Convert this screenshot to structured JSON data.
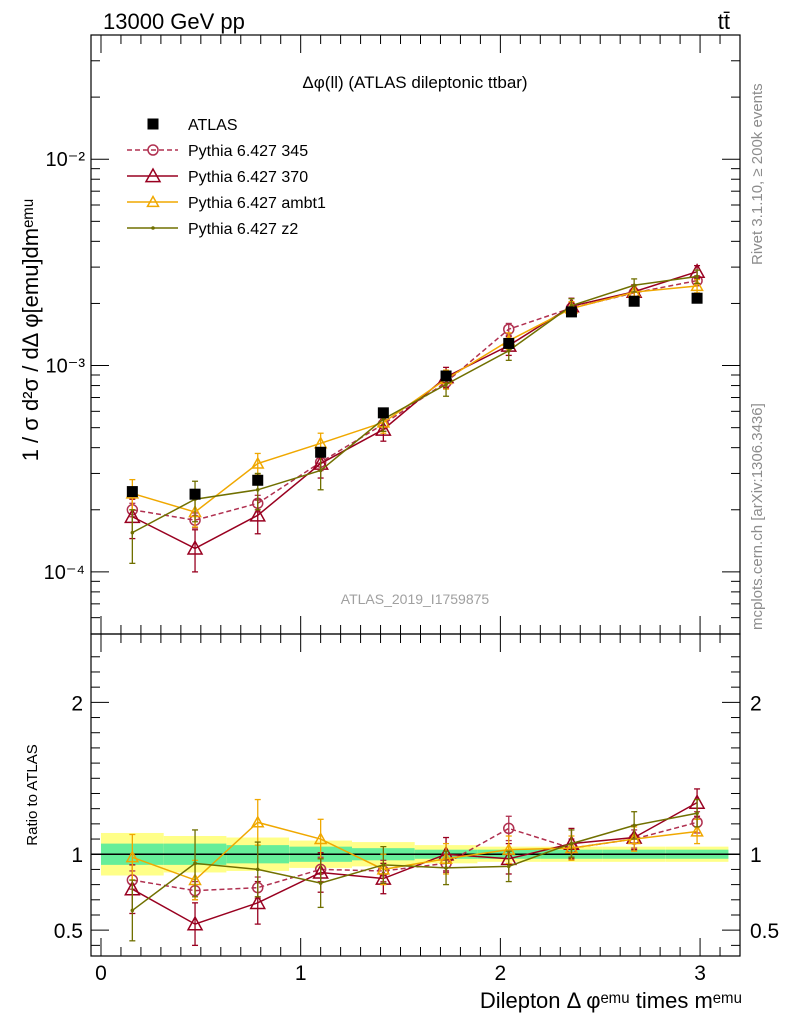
{
  "header": {
    "left": "13000 GeV pp",
    "right": "tt̄"
  },
  "side_text": {
    "rivet": "Rivet 3.1.10, ≥ 200k events",
    "mcplots": "mcplots.cern.ch [arXiv:1306.3436]"
  },
  "chart_data": [
    {
      "type": "scatter",
      "title": "Δφ(ll) (ATLAS dileptonic ttbar)",
      "watermark": "ATLAS_2019_I1759875",
      "ylabel": "1 / σ  d²σ / dΔ φ[emu]dmᵉᵐᵘ",
      "yscale": "log",
      "ylim": [
        5e-05,
        0.04
      ],
      "xlim": [
        -0.05,
        3.2
      ],
      "y_ticks": [
        {
          "value": 0.0001,
          "label": "10⁻⁴"
        },
        {
          "value": 0.001,
          "label": "10⁻³"
        },
        {
          "value": 0.01,
          "label": "10⁻²"
        }
      ],
      "legend_position": "top-left",
      "x": [
        0.157,
        0.471,
        0.785,
        1.1,
        1.414,
        1.728,
        2.042,
        2.356,
        2.67,
        2.985
      ],
      "series": [
        {
          "name": "ATLAS",
          "style": "marker-square",
          "color": "#000000",
          "values": [
            0.000245,
            0.000238,
            0.000278,
            0.00038,
            0.00059,
            0.00089,
            0.00128,
            0.00182,
            0.00205,
            0.00212
          ]
        },
        {
          "name": "Pythia 6.427 345",
          "style": "dashed-circle",
          "color": "#b03050",
          "values": [
            0.0002,
            0.000178,
            0.000215,
            0.00034,
            0.00052,
            0.00083,
            0.0015,
            0.0019,
            0.00225,
            0.00258
          ],
          "err": [
            1.5e-05,
            1.5e-05,
            2e-05,
            3e-05,
            4e-05,
            6e-05,
            0.0001,
            0.00012,
            0.00012,
            0.00014
          ]
        },
        {
          "name": "Pythia 6.427 370",
          "style": "solid-triangle-open",
          "color": "#990020",
          "values": [
            0.000185,
            0.00013,
            0.000188,
            0.000335,
            0.00049,
            0.00088,
            0.00125,
            0.00194,
            0.00228,
            0.00285
          ],
          "err": [
            4e-05,
            3e-05,
            3.5e-05,
            5e-05,
            6e-05,
            0.0001,
            0.00013,
            0.00018,
            0.00018,
            0.0002
          ]
        },
        {
          "name": "Pythia 6.427 ambt1",
          "style": "solid-triangle-open",
          "color": "#f0a800",
          "values": [
            0.00024,
            0.000195,
            0.000335,
            0.00042,
            0.00053,
            0.00086,
            0.00132,
            0.00189,
            0.00227,
            0.00243
          ],
          "err": [
            4e-05,
            3e-05,
            4e-05,
            5e-05,
            6e-05,
            9e-05,
            0.00012,
            0.00015,
            0.00016,
            0.00018
          ]
        },
        {
          "name": "Pythia 6.427 z2",
          "style": "solid-dot",
          "color": "#707000",
          "values": [
            0.000155,
            0.000225,
            0.00025,
            0.00031,
            0.00055,
            0.00081,
            0.00118,
            0.00195,
            0.00245,
            0.0027
          ],
          "err": [
            4.5e-05,
            5e-05,
            5e-05,
            6e-05,
            7e-05,
            0.0001,
            0.00012,
            0.00016,
            0.00018,
            0.0002
          ]
        }
      ]
    },
    {
      "type": "scatter",
      "ylabel": "Ratio to ATLAS",
      "xlabel": "Dilepton Δ φᵉᵐᵘ times mᵉᵐᵘ",
      "ylim": [
        0.33,
        2.45
      ],
      "xlim": [
        -0.05,
        3.2
      ],
      "x_ticks": [
        0,
        1,
        2,
        3
      ],
      "y_ticks": [
        0.5,
        1,
        2
      ],
      "x": [
        0.157,
        0.471,
        0.785,
        1.1,
        1.414,
        1.728,
        2.042,
        2.356,
        2.67,
        2.985
      ],
      "band_inner": [
        0.07,
        0.07,
        0.06,
        0.05,
        0.04,
        0.03,
        0.03,
        0.03,
        0.03,
        0.03
      ],
      "band_outer": [
        0.14,
        0.12,
        0.11,
        0.09,
        0.08,
        0.06,
        0.05,
        0.05,
        0.05,
        0.05
      ],
      "series": [
        {
          "name": "Pythia 6.427 345",
          "style": "dashed-circle",
          "color": "#b03050",
          "values": [
            0.83,
            0.76,
            0.78,
            0.9,
            0.89,
            0.94,
            1.17,
            1.04,
            1.1,
            1.21
          ],
          "err": [
            0.06,
            0.06,
            0.07,
            0.08,
            0.07,
            0.06,
            0.08,
            0.06,
            0.06,
            0.07
          ]
        },
        {
          "name": "Pythia 6.427 370",
          "style": "solid-triangle-open",
          "color": "#990020",
          "values": [
            0.77,
            0.54,
            0.68,
            0.88,
            0.84,
            1.0,
            0.97,
            1.07,
            1.11,
            1.34
          ],
          "err": [
            0.16,
            0.14,
            0.14,
            0.13,
            0.1,
            0.11,
            0.1,
            0.1,
            0.08,
            0.09
          ]
        },
        {
          "name": "Pythia 6.427 ambt1",
          "style": "solid-triangle-open",
          "color": "#f0a800",
          "values": [
            0.98,
            0.83,
            1.21,
            1.1,
            0.9,
            0.97,
            1.03,
            1.04,
            1.1,
            1.15
          ],
          "err": [
            0.15,
            0.13,
            0.15,
            0.13,
            0.1,
            0.1,
            0.09,
            0.08,
            0.08,
            0.08
          ]
        },
        {
          "name": "Pythia 6.427 z2",
          "style": "solid-dot",
          "color": "#707000",
          "values": [
            0.63,
            0.94,
            0.9,
            0.81,
            0.93,
            0.91,
            0.92,
            1.07,
            1.19,
            1.27
          ],
          "err": [
            0.2,
            0.22,
            0.18,
            0.16,
            0.12,
            0.11,
            0.1,
            0.09,
            0.09,
            0.09
          ]
        }
      ]
    }
  ]
}
